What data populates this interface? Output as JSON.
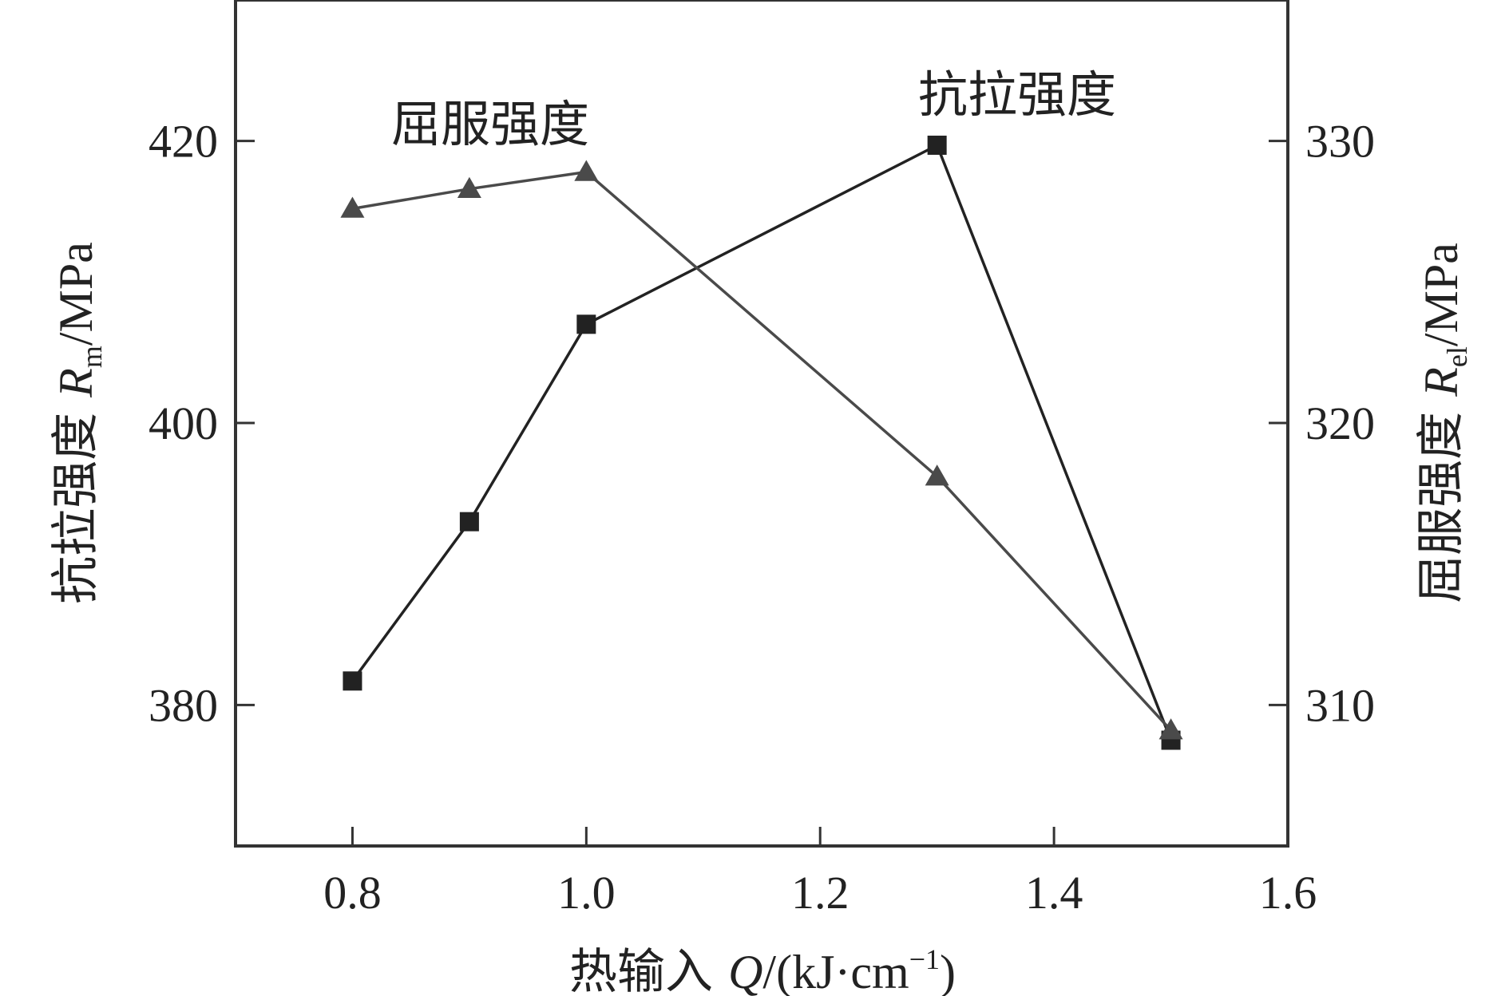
{
  "chart_data": {
    "type": "line",
    "x_axis": {
      "label_prefix": "热输入 ",
      "symbol": "Q",
      "unit_open": "/(kJ·cm",
      "unit_sup": "−1",
      "unit_close": ")",
      "range": [
        0.7,
        1.6
      ],
      "ticks": [
        0.8,
        1.0,
        1.2,
        1.4,
        1.6
      ],
      "tick_labels": [
        "0.8",
        "1.0",
        "1.2",
        "1.4",
        "1.6"
      ]
    },
    "y_left": {
      "label_prefix": "抗拉强度 ",
      "symbol": "R",
      "subscript": "m",
      "unit": "/MPa",
      "range": [
        370,
        430
      ],
      "ticks": [
        380,
        400,
        420
      ],
      "tick_labels": [
        "380",
        "400",
        "420"
      ]
    },
    "y_right": {
      "label_prefix": "屈服强度 ",
      "symbol": "R",
      "subscript": "el",
      "unit": "/MPa",
      "range": [
        305,
        335
      ],
      "ticks": [
        310,
        320,
        330
      ],
      "tick_labels": [
        "310",
        "320",
        "330"
      ]
    },
    "series": [
      {
        "name": "抗拉强度",
        "axis": "left",
        "marker": "square",
        "color": "#222222",
        "x": [
          0.8,
          0.9,
          1.0,
          1.3,
          1.5
        ],
        "y": [
          381.7,
          393.0,
          407.0,
          419.7,
          377.5
        ]
      },
      {
        "name": "屈服强度",
        "axis": "right",
        "marker": "triangle",
        "color": "#4a4a4a",
        "x": [
          0.8,
          0.9,
          1.0,
          1.3,
          1.5
        ],
        "y": [
          327.6,
          328.3,
          328.9,
          318.1,
          309.1
        ]
      }
    ],
    "annotations": [
      "屈服强度",
      "抗拉强度"
    ],
    "grid": false,
    "legend": "none"
  }
}
